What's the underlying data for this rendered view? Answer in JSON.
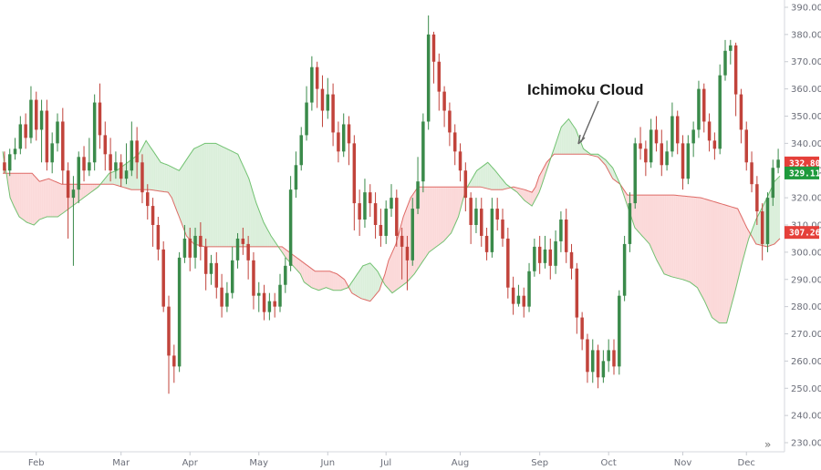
{
  "chart_data": {
    "type": "candlestick",
    "title": "",
    "annotation": "Ichimoku Cloud",
    "y_ticks": [
      "230.00",
      "240.00",
      "250.00",
      "260.00",
      "270.00",
      "280.00",
      "290.00",
      "300.00",
      "310.00",
      "320.00",
      "330.00",
      "340.00",
      "350.00",
      "360.00",
      "370.00",
      "380.00",
      "390.00"
    ],
    "ylim": [
      229,
      391
    ],
    "x_months": [
      "Feb",
      "Mar",
      "Apr",
      "May",
      "Jun",
      "Jul",
      "Aug",
      "Sep",
      "Oct",
      "Nov",
      "Dec"
    ],
    "price_badges": [
      {
        "label": "332.80",
        "value": 332.8,
        "color": "#e5403a"
      },
      {
        "label": "329.11",
        "value": 329.11,
        "color": "#1e9a3c"
      },
      {
        "label": "307.26",
        "value": 307.26,
        "color": "#e5403a"
      }
    ],
    "colors": {
      "up": "#3a8a4a",
      "down": "#c1433b",
      "bull_cloud": "#dbefdb",
      "bear_cloud": "#fbd9d9",
      "span_a": "#d9534f",
      "span_b": "#5cb85c"
    },
    "candles": [
      [
        333,
        330,
        337,
        329
      ],
      [
        330,
        336,
        338,
        328
      ],
      [
        336,
        338,
        342,
        334
      ],
      [
        338,
        347,
        350,
        336
      ],
      [
        347,
        342,
        351,
        338
      ],
      [
        342,
        356,
        361,
        340
      ],
      [
        356,
        345,
        359,
        341
      ],
      [
        345,
        352,
        356,
        333
      ],
      [
        352,
        333,
        356,
        330
      ],
      [
        333,
        340,
        344,
        329
      ],
      [
        340,
        348,
        351,
        337
      ],
      [
        348,
        330,
        353,
        325
      ],
      [
        330,
        320,
        333,
        305
      ],
      [
        320,
        323,
        328,
        295
      ],
      [
        323,
        335,
        337,
        318
      ],
      [
        335,
        330,
        339,
        326
      ],
      [
        330,
        333,
        342,
        328
      ],
      [
        333,
        355,
        358,
        330
      ],
      [
        355,
        343,
        362,
        338
      ],
      [
        343,
        336,
        348,
        330
      ],
      [
        336,
        330,
        342,
        326
      ],
      [
        330,
        333,
        337,
        327
      ],
      [
        333,
        327,
        336,
        324
      ],
      [
        327,
        330,
        340,
        325
      ],
      [
        330,
        341,
        348,
        328
      ],
      [
        341,
        333,
        346,
        327
      ],
      [
        333,
        322,
        336,
        318
      ],
      [
        322,
        317,
        325,
        312
      ],
      [
        317,
        310,
        320,
        302
      ],
      [
        310,
        301,
        313,
        297
      ],
      [
        301,
        280,
        304,
        278
      ],
      [
        280,
        262,
        284,
        248
      ],
      [
        262,
        258,
        266,
        252
      ],
      [
        258,
        298,
        300,
        256
      ],
      [
        298,
        305,
        310,
        296
      ],
      [
        305,
        298,
        309,
        293
      ],
      [
        298,
        306,
        309,
        294
      ],
      [
        306,
        302,
        311,
        297
      ],
      [
        302,
        292,
        305,
        286
      ],
      [
        292,
        296,
        299,
        288
      ],
      [
        296,
        287,
        300,
        283
      ],
      [
        287,
        280,
        292,
        276
      ],
      [
        280,
        285,
        289,
        278
      ],
      [
        285,
        297,
        302,
        283
      ],
      [
        297,
        305,
        307,
        294
      ],
      [
        305,
        303,
        309,
        299
      ],
      [
        303,
        297,
        306,
        290
      ],
      [
        297,
        284,
        300,
        279
      ],
      [
        284,
        285,
        289,
        278
      ],
      [
        285,
        278,
        288,
        275
      ],
      [
        278,
        282,
        285,
        275
      ],
      [
        282,
        280,
        285,
        276
      ],
      [
        280,
        288,
        292,
        278
      ],
      [
        288,
        295,
        298,
        285
      ],
      [
        295,
        323,
        328,
        293
      ],
      [
        323,
        332,
        337,
        320
      ],
      [
        332,
        343,
        346,
        330
      ],
      [
        343,
        355,
        361,
        341
      ],
      [
        355,
        368,
        372,
        352
      ],
      [
        368,
        360,
        370,
        353
      ],
      [
        360,
        352,
        365,
        346
      ],
      [
        352,
        358,
        364,
        349
      ],
      [
        358,
        344,
        362,
        339
      ],
      [
        344,
        337,
        348,
        333
      ],
      [
        337,
        347,
        351,
        335
      ],
      [
        347,
        340,
        350,
        332
      ],
      [
        340,
        318,
        343,
        308
      ],
      [
        318,
        312,
        323,
        306
      ],
      [
        312,
        322,
        327,
        309
      ],
      [
        322,
        318,
        325,
        313
      ],
      [
        318,
        310,
        322,
        305
      ],
      [
        310,
        306,
        316,
        302
      ],
      [
        306,
        316,
        319,
        303
      ],
      [
        316,
        320,
        325,
        313
      ],
      [
        320,
        306,
        323,
        302
      ],
      [
        306,
        302,
        309,
        290
      ],
      [
        302,
        297,
        306,
        286
      ],
      [
        297,
        316,
        320,
        295
      ],
      [
        316,
        326,
        335,
        314
      ],
      [
        326,
        348,
        351,
        322
      ],
      [
        348,
        380,
        387,
        345
      ],
      [
        380,
        370,
        381,
        362
      ],
      [
        370,
        359,
        373,
        352
      ],
      [
        359,
        352,
        361,
        346
      ],
      [
        352,
        344,
        355,
        339
      ],
      [
        344,
        337,
        347,
        332
      ],
      [
        337,
        330,
        340,
        326
      ],
      [
        330,
        320,
        333,
        315
      ],
      [
        320,
        310,
        322,
        303
      ],
      [
        310,
        316,
        320,
        307
      ],
      [
        316,
        306,
        320,
        302
      ],
      [
        306,
        300,
        309,
        297
      ],
      [
        300,
        316,
        320,
        298
      ],
      [
        316,
        312,
        320,
        308
      ],
      [
        312,
        305,
        316,
        302
      ],
      [
        305,
        287,
        309,
        283
      ],
      [
        287,
        281,
        291,
        277
      ],
      [
        281,
        284,
        288,
        280
      ],
      [
        284,
        280,
        287,
        276
      ],
      [
        280,
        293,
        296,
        278
      ],
      [
        293,
        302,
        305,
        291
      ],
      [
        302,
        296,
        306,
        292
      ],
      [
        296,
        301,
        306,
        294
      ],
      [
        301,
        295,
        305,
        290
      ],
      [
        295,
        304,
        308,
        292
      ],
      [
        304,
        312,
        315,
        300
      ],
      [
        312,
        300,
        316,
        296
      ],
      [
        300,
        294,
        303,
        290
      ],
      [
        294,
        276,
        296,
        270
      ],
      [
        276,
        268,
        278,
        264
      ],
      [
        268,
        256,
        270,
        252
      ],
      [
        256,
        264,
        268,
        252
      ],
      [
        264,
        254,
        266,
        250
      ],
      [
        254,
        260,
        264,
        252
      ],
      [
        260,
        264,
        268,
        256
      ],
      [
        264,
        258,
        268,
        255
      ],
      [
        258,
        284,
        286,
        255
      ],
      [
        284,
        303,
        306,
        282
      ],
      [
        303,
        318,
        322,
        300
      ],
      [
        318,
        340,
        342,
        316
      ],
      [
        340,
        338,
        346,
        334
      ],
      [
        338,
        333,
        341,
        328
      ],
      [
        333,
        345,
        349,
        331
      ],
      [
        345,
        340,
        350,
        337
      ],
      [
        340,
        332,
        345,
        328
      ],
      [
        332,
        337,
        341,
        330
      ],
      [
        337,
        350,
        355,
        335
      ],
      [
        350,
        340,
        352,
        336
      ],
      [
        340,
        327,
        343,
        323
      ],
      [
        327,
        340,
        343,
        325
      ],
      [
        340,
        345,
        348,
        335
      ],
      [
        345,
        360,
        363,
        342
      ],
      [
        360,
        348,
        362,
        344
      ],
      [
        348,
        341,
        351,
        337
      ],
      [
        341,
        338,
        344,
        334
      ],
      [
        338,
        365,
        369,
        336
      ],
      [
        365,
        374,
        378,
        363
      ],
      [
        374,
        376,
        378,
        369
      ],
      [
        376,
        358,
        377,
        350
      ],
      [
        358,
        345,
        360,
        340
      ],
      [
        345,
        333,
        348,
        330
      ],
      [
        333,
        325,
        337,
        322
      ],
      [
        325,
        315,
        328,
        310
      ],
      [
        315,
        303,
        318,
        297
      ],
      [
        303,
        320,
        322,
        300
      ],
      [
        320,
        331,
        334,
        317
      ],
      [
        331,
        334,
        338,
        329
      ]
    ],
    "span_a": [
      [
        0,
        329
      ],
      [
        9,
        329
      ],
      [
        16,
        329
      ],
      [
        20,
        326
      ],
      [
        25,
        327
      ],
      [
        32,
        325
      ],
      [
        40,
        325
      ],
      [
        55,
        325
      ],
      [
        60,
        325
      ],
      [
        70,
        323
      ],
      [
        80,
        323
      ],
      [
        90,
        322
      ],
      [
        92,
        320
      ],
      [
        96,
        313
      ],
      [
        100,
        306
      ],
      [
        104,
        303
      ],
      [
        110,
        302
      ],
      [
        120,
        302
      ],
      [
        128,
        302
      ],
      [
        133,
        302
      ],
      [
        140,
        302
      ],
      [
        148,
        302
      ],
      [
        152,
        302
      ],
      [
        156,
        300
      ],
      [
        160,
        298
      ],
      [
        166,
        295
      ],
      [
        170,
        293
      ],
      [
        178,
        293
      ],
      [
        182,
        292
      ],
      [
        186,
        290
      ],
      [
        190,
        285
      ],
      [
        195,
        283
      ],
      [
        200,
        282
      ],
      [
        205,
        286
      ],
      [
        208,
        292
      ],
      [
        210,
        297
      ],
      [
        214,
        303
      ],
      [
        218,
        313
      ],
      [
        222,
        320
      ],
      [
        226,
        324
      ],
      [
        230,
        324
      ],
      [
        240,
        324
      ],
      [
        250,
        324
      ],
      [
        260,
        324
      ],
      [
        266,
        323
      ],
      [
        272,
        323
      ],
      [
        278,
        324
      ],
      [
        284,
        323
      ],
      [
        288,
        322
      ],
      [
        290,
        324
      ],
      [
        292,
        328
      ],
      [
        296,
        333
      ],
      [
        300,
        336
      ],
      [
        305,
        336
      ],
      [
        310,
        336
      ],
      [
        318,
        336
      ],
      [
        324,
        335
      ],
      [
        328,
        332
      ],
      [
        332,
        327
      ],
      [
        336,
        325
      ],
      [
        340,
        321
      ],
      [
        345,
        321
      ],
      [
        355,
        321
      ],
      [
        365,
        321
      ],
      [
        380,
        320
      ],
      [
        390,
        318
      ],
      [
        395,
        317
      ],
      [
        400,
        316
      ],
      [
        405,
        309
      ],
      [
        410,
        303
      ],
      [
        416,
        302
      ],
      [
        420,
        303
      ],
      [
        423,
        305
      ]
    ],
    "span_b": [
      [
        0,
        337
      ],
      [
        2,
        329
      ],
      [
        4,
        320
      ],
      [
        6,
        317
      ],
      [
        9,
        313
      ],
      [
        13,
        311
      ],
      [
        17,
        310
      ],
      [
        20,
        312
      ],
      [
        24,
        313
      ],
      [
        30,
        313
      ],
      [
        36,
        316
      ],
      [
        42,
        319
      ],
      [
        46,
        321
      ],
      [
        52,
        324
      ],
      [
        58,
        329
      ],
      [
        62,
        330
      ],
      [
        66,
        332
      ],
      [
        70,
        334
      ],
      [
        74,
        336
      ],
      [
        78,
        341
      ],
      [
        82,
        337
      ],
      [
        86,
        333
      ],
      [
        90,
        332
      ],
      [
        96,
        330
      ],
      [
        100,
        334
      ],
      [
        104,
        338
      ],
      [
        110,
        340
      ],
      [
        116,
        340
      ],
      [
        122,
        338
      ],
      [
        128,
        336
      ],
      [
        134,
        327
      ],
      [
        138,
        318
      ],
      [
        142,
        311
      ],
      [
        146,
        306
      ],
      [
        150,
        302
      ],
      [
        154,
        298
      ],
      [
        158,
        295
      ],
      [
        162,
        292
      ],
      [
        164,
        289
      ],
      [
        168,
        287
      ],
      [
        172,
        286
      ],
      [
        176,
        287
      ],
      [
        180,
        286
      ],
      [
        184,
        286
      ],
      [
        188,
        287
      ],
      [
        192,
        291
      ],
      [
        196,
        295
      ],
      [
        200,
        296
      ],
      [
        204,
        293
      ],
      [
        208,
        288
      ],
      [
        212,
        285
      ],
      [
        216,
        287
      ],
      [
        220,
        289
      ],
      [
        224,
        292
      ],
      [
        228,
        296
      ],
      [
        232,
        300
      ],
      [
        236,
        302
      ],
      [
        240,
        304
      ],
      [
        244,
        307
      ],
      [
        248,
        313
      ],
      [
        252,
        323
      ],
      [
        258,
        330
      ],
      [
        264,
        333
      ],
      [
        268,
        330
      ],
      [
        274,
        325
      ],
      [
        280,
        322
      ],
      [
        284,
        319
      ],
      [
        288,
        317
      ],
      [
        292,
        322
      ],
      [
        296,
        330
      ],
      [
        300,
        338
      ],
      [
        304,
        346
      ],
      [
        308,
        349
      ],
      [
        312,
        345
      ],
      [
        316,
        338
      ],
      [
        320,
        336
      ],
      [
        324,
        336
      ],
      [
        328,
        334
      ],
      [
        332,
        331
      ],
      [
        336,
        325
      ],
      [
        340,
        317
      ],
      [
        344,
        309
      ],
      [
        348,
        306
      ],
      [
        352,
        303
      ],
      [
        356,
        297
      ],
      [
        360,
        292
      ],
      [
        364,
        291
      ],
      [
        370,
        290
      ],
      [
        374,
        289
      ],
      [
        378,
        287
      ],
      [
        382,
        282
      ],
      [
        386,
        276
      ],
      [
        390,
        274
      ],
      [
        394,
        274
      ],
      [
        398,
        284
      ],
      [
        402,
        295
      ],
      [
        406,
        305
      ],
      [
        410,
        312
      ],
      [
        416,
        320
      ],
      [
        420,
        326
      ],
      [
        423,
        328
      ]
    ]
  }
}
